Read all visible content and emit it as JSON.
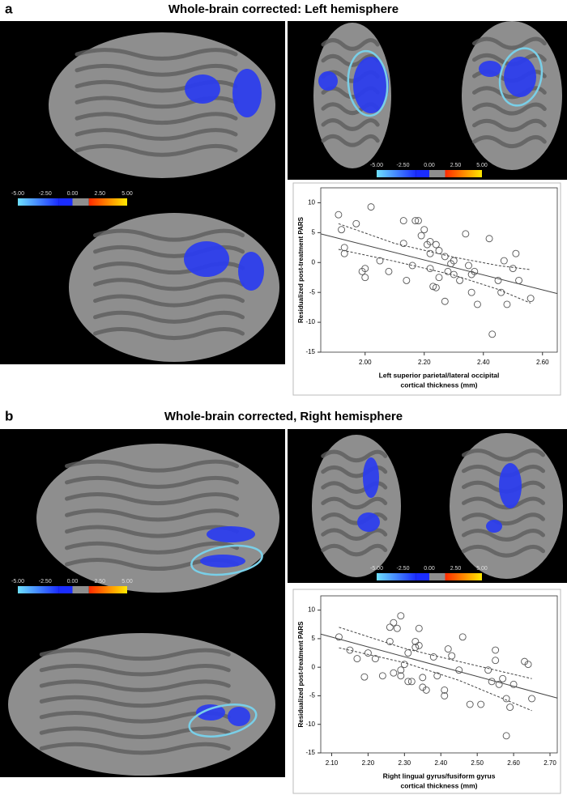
{
  "panels": [
    {
      "label": "a",
      "title": "Whole-brain corrected: Left hemisphere",
      "colorbar_labels": [
        "-5.00",
        "-2.50",
        "0.00",
        "2.50",
        "5.00"
      ]
    },
    {
      "label": "b",
      "title": "Whole-brain corrected, Right hemisphere",
      "colorbar_labels": [
        "-5.00",
        "-2.50",
        "0.00",
        "2.50",
        "5.00"
      ]
    }
  ],
  "chart_data": [
    {
      "type": "scatter",
      "ylabel": "Residualized post-treatment PARS",
      "xlabel": [
        "Left superior parietal/lateral occipital",
        "cortical thickness (mm)"
      ],
      "x": [
        1.91,
        1.92,
        1.93,
        1.93,
        1.97,
        1.99,
        2.0,
        2.0,
        2.02,
        2.05,
        2.08,
        2.13,
        2.13,
        2.14,
        2.16,
        2.17,
        2.18,
        2.19,
        2.2,
        2.21,
        2.22,
        2.22,
        2.22,
        2.23,
        2.24,
        2.24,
        2.25,
        2.25,
        2.27,
        2.27,
        2.28,
        2.29,
        2.3,
        2.3,
        2.32,
        2.34,
        2.35,
        2.36,
        2.36,
        2.37,
        2.38,
        2.42,
        2.43,
        2.45,
        2.46,
        2.47,
        2.48,
        2.5,
        2.51,
        2.52,
        2.56
      ],
      "values": [
        8,
        5.5,
        2.5,
        1.5,
        6.5,
        -1.5,
        -1,
        -2.5,
        9.3,
        0.3,
        -1.5,
        7,
        3.2,
        -3,
        -0.5,
        7,
        7,
        4.5,
        5.5,
        3,
        3.5,
        1.5,
        -1,
        -4,
        3,
        -4.2,
        2,
        -2.5,
        1,
        -6.5,
        -1.5,
        -0.2,
        0.3,
        -2,
        -3,
        4.8,
        -0.5,
        -5,
        -2,
        -1.5,
        -7,
        4,
        -12,
        -3,
        -5,
        0.3,
        -7,
        -1,
        1.5,
        -3,
        -6
      ],
      "fit": {
        "x": [
          1.85,
          2.65
        ],
        "y": [
          4.8,
          -5.2
        ]
      },
      "ci_upper": {
        "x": [
          1.91,
          2.1,
          2.3,
          2.45,
          2.56
        ],
        "y": [
          6.5,
          3.2,
          0.9,
          -0.5,
          -1.2
        ]
      },
      "ci_lower": {
        "x": [
          1.91,
          2.1,
          2.3,
          2.45,
          2.56
        ],
        "y": [
          2.2,
          0.2,
          -2.1,
          -4.5,
          -6.8
        ]
      },
      "xlim": [
        1.85,
        2.65
      ],
      "ylim": [
        -15,
        12.5
      ],
      "xticks": [
        {
          "value": 2.0,
          "label": "2.00"
        },
        {
          "value": 2.2,
          "label": "2.20"
        },
        {
          "value": 2.4,
          "label": "2.40"
        },
        {
          "value": 2.6,
          "label": "2.60"
        }
      ],
      "yticks": [
        -15,
        -10,
        -5,
        0,
        5,
        10
      ],
      "color": "#555555"
    },
    {
      "type": "scatter",
      "ylabel": "Residualized post-treatment PARS",
      "xlabel": [
        "Right lingual gyrus/fusiform gyrus",
        "cortical thickness (mm)"
      ],
      "x": [
        2.12,
        2.15,
        2.17,
        2.19,
        2.2,
        2.22,
        2.24,
        2.26,
        2.26,
        2.27,
        2.27,
        2.28,
        2.29,
        2.29,
        2.29,
        2.3,
        2.31,
        2.31,
        2.32,
        2.33,
        2.33,
        2.34,
        2.34,
        2.35,
        2.35,
        2.36,
        2.38,
        2.39,
        2.41,
        2.41,
        2.42,
        2.43,
        2.45,
        2.46,
        2.48,
        2.51,
        2.53,
        2.54,
        2.55,
        2.55,
        2.56,
        2.57,
        2.58,
        2.58,
        2.59,
        2.6,
        2.63,
        2.64,
        2.65
      ],
      "values": [
        5.3,
        3,
        1.5,
        -1.7,
        2.5,
        1.5,
        -1.5,
        7,
        4.5,
        -1,
        7.8,
        6.8,
        -0.5,
        -1.5,
        9,
        0.5,
        2.5,
        -2.5,
        -2.5,
        4.5,
        3.5,
        3.8,
        6.8,
        -3.5,
        -1.8,
        -4,
        1.8,
        -1.5,
        -4,
        -5,
        3.2,
        2,
        -0.5,
        5.3,
        -6.5,
        -6.5,
        -0.5,
        -2.5,
        3,
        1.2,
        -3,
        -2,
        -5.5,
        -12,
        -7,
        -3,
        1,
        0.5,
        -5.5
      ],
      "fit": {
        "x": [
          2.07,
          2.72
        ],
        "y": [
          5.8,
          -5.4
        ]
      },
      "ci_upper": {
        "x": [
          2.12,
          2.3,
          2.45,
          2.65
        ],
        "y": [
          7,
          3.3,
          1,
          -2
        ]
      },
      "ci_lower": {
        "x": [
          2.12,
          2.3,
          2.45,
          2.65
        ],
        "y": [
          3.4,
          0.8,
          -2.3,
          -7.6
        ]
      },
      "xlim": [
        2.07,
        2.72
      ],
      "ylim": [
        -15,
        12.5
      ],
      "xticks": [
        {
          "value": 2.1,
          "label": "2.10"
        },
        {
          "value": 2.2,
          "label": "2.20"
        },
        {
          "value": 2.3,
          "label": "2.30"
        },
        {
          "value": 2.4,
          "label": "2.40"
        },
        {
          "value": 2.5,
          "label": "2.50"
        },
        {
          "value": 2.6,
          "label": "2.60"
        },
        {
          "value": 2.7,
          "label": "2.70"
        }
      ],
      "yticks": [
        -15,
        -10,
        -5,
        0,
        5,
        10
      ],
      "color": "#555555"
    }
  ]
}
